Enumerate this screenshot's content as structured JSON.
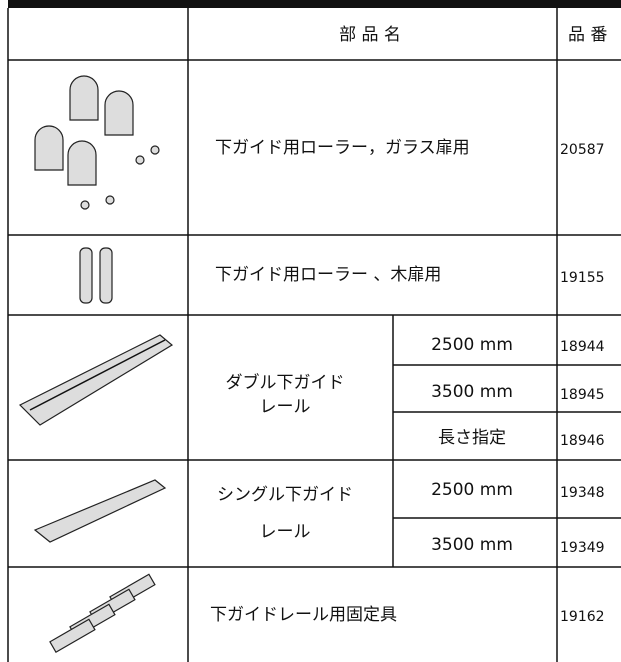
{
  "header": {
    "name": "部 品 名",
    "number": "品 番"
  },
  "rows": [
    {
      "name": "下ガイド用ローラー，ガラス扉用",
      "number": "20587"
    },
    {
      "name": "下ガイド用ローラー 、木扉用",
      "number": "19155"
    },
    {
      "name_lines": [
        "ダブル下ガイド",
        "レール"
      ],
      "variants": [
        {
          "size": "2500 mm",
          "number": "18944"
        },
        {
          "size": "3500 mm",
          "number": "18945"
        },
        {
          "size": "長さ指定",
          "number": "18946"
        }
      ]
    },
    {
      "name_lines": [
        "シングル下ガイド",
        "レール"
      ],
      "variants": [
        {
          "size": "2500 mm",
          "number": "19348"
        },
        {
          "size": "3500 mm",
          "number": "19349"
        }
      ]
    },
    {
      "name": "下ガイドレール用固定具",
      "number": "19162"
    }
  ]
}
